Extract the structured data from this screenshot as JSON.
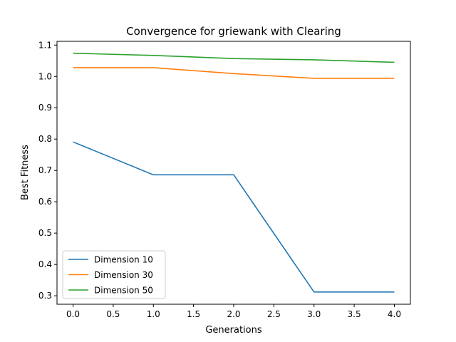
{
  "chart_data": {
    "type": "line",
    "title": "Convergence for griewank with Clearing",
    "xlabel": "Generations",
    "ylabel": "Best Fitness",
    "xlim": [
      -0.2,
      4.2
    ],
    "ylim": [
      0.273,
      1.112
    ],
    "xticks": [
      "0.0",
      "0.5",
      "1.0",
      "1.5",
      "2.0",
      "2.5",
      "3.0",
      "3.5",
      "4.0"
    ],
    "yticks": [
      "0.3",
      "0.4",
      "0.5",
      "0.6",
      "0.7",
      "0.8",
      "0.9",
      "1.0",
      "1.1"
    ],
    "grid": false,
    "legend_position": "lower-left",
    "x": [
      0,
      1,
      2,
      3,
      4
    ],
    "series": [
      {
        "name": "Dimension 10",
        "color": "#1f77b4",
        "values": [
          0.791,
          0.686,
          0.686,
          0.312,
          0.312
        ]
      },
      {
        "name": "Dimension 30",
        "color": "#ff7f0e",
        "values": [
          1.028,
          1.028,
          1.009,
          0.994,
          0.994
        ]
      },
      {
        "name": "Dimension 50",
        "color": "#2ca02c",
        "values": [
          1.074,
          1.067,
          1.057,
          1.053,
          1.045
        ]
      }
    ]
  }
}
